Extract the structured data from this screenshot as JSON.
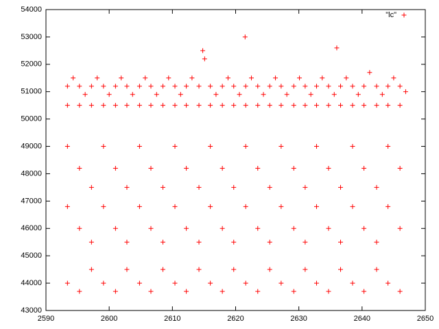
{
  "chart_data": {
    "type": "scatter",
    "color": "#ff0000",
    "legend": "top-right",
    "series": [
      {
        "name": "\"lc\"",
        "color": "#ff0000",
        "x": [
          2593.4,
          2593.4,
          2593.4,
          2593.4,
          2593.4,
          2594.3,
          2595.3,
          2595.3,
          2595.3,
          2595.3,
          2595.3,
          2596.2,
          2597.2,
          2597.2,
          2597.2,
          2597.2,
          2597.2,
          2598.1,
          2599.1,
          2599.1,
          2599.1,
          2599.1,
          2599.1,
          2600.0,
          2601.0,
          2601.0,
          2601.0,
          2601.0,
          2601.0,
          2601.9,
          2602.8,
          2602.8,
          2602.8,
          2602.8,
          2602.8,
          2603.7,
          2604.8,
          2604.8,
          2604.8,
          2604.8,
          2604.8,
          2605.7,
          2606.6,
          2606.6,
          2606.6,
          2606.6,
          2606.6,
          2607.5,
          2608.5,
          2608.5,
          2608.5,
          2608.5,
          2608.5,
          2609.4,
          2610.4,
          2610.4,
          2610.4,
          2610.4,
          2610.4,
          2611.3,
          2612.2,
          2612.2,
          2612.2,
          2612.2,
          2612.2,
          2613.1,
          2614.2,
          2614.2,
          2614.2,
          2614.2,
          2614.2,
          2615.1,
          2616.0,
          2616.0,
          2616.0,
          2616.0,
          2616.0,
          2616.9,
          2617.9,
          2617.9,
          2617.9,
          2617.9,
          2617.9,
          2618.8,
          2619.7,
          2619.7,
          2619.7,
          2619.7,
          2619.7,
          2620.6,
          2621.6,
          2621.6,
          2621.6,
          2621.6,
          2621.6,
          2622.5,
          2623.5,
          2623.5,
          2623.5,
          2623.5,
          2623.5,
          2624.4,
          2625.4,
          2625.4,
          2625.4,
          2625.4,
          2625.4,
          2626.3,
          2627.2,
          2627.2,
          2627.2,
          2627.2,
          2627.2,
          2628.1,
          2629.2,
          2629.2,
          2629.2,
          2629.2,
          2629.2,
          2630.1,
          2631.0,
          2631.0,
          2631.0,
          2631.0,
          2631.0,
          2631.9,
          2632.8,
          2632.8,
          2632.8,
          2632.8,
          2632.8,
          2633.7,
          2634.7,
          2634.7,
          2634.7,
          2634.7,
          2634.7,
          2635.6,
          2636.6,
          2636.6,
          2636.6,
          2636.6,
          2636.6,
          2637.5,
          2638.5,
          2638.5,
          2638.5,
          2638.5,
          2638.5,
          2639.4,
          2640.3,
          2640.3,
          2640.3,
          2640.3,
          2640.3,
          2641.2,
          2642.3,
          2642.3,
          2642.3,
          2642.3,
          2642.3,
          2643.2,
          2644.1,
          2644.1,
          2644.1,
          2644.1,
          2644.1,
          2645.0,
          2646.0,
          2646.0,
          2646.0,
          2646.0,
          2646.0,
          2646.9,
          2621.5,
          2614.8,
          2636.0
        ],
        "values": [
          51200,
          50500,
          49000,
          46800,
          44000,
          51500,
          51200,
          50500,
          48200,
          46000,
          43700,
          50900,
          51200,
          50500,
          47500,
          45500,
          44500,
          51500,
          51200,
          50500,
          49000,
          46800,
          44000,
          50900,
          51200,
          50500,
          48200,
          46000,
          43700,
          51500,
          51200,
          50500,
          47500,
          45500,
          44500,
          50900,
          51200,
          50500,
          49000,
          46800,
          44000,
          51500,
          51200,
          50500,
          48200,
          46000,
          43700,
          50900,
          51200,
          50500,
          47500,
          45500,
          44500,
          51500,
          51200,
          50500,
          49000,
          46800,
          44000,
          50900,
          51200,
          50500,
          48200,
          46000,
          43700,
          51500,
          51200,
          50500,
          47500,
          45500,
          44500,
          52200,
          51200,
          50500,
          49000,
          46800,
          44000,
          50900,
          51200,
          50500,
          48200,
          46000,
          43700,
          51500,
          51200,
          50500,
          47500,
          45500,
          44500,
          50900,
          51200,
          50500,
          49000,
          46800,
          44000,
          51500,
          51200,
          50500,
          48200,
          46000,
          43700,
          50900,
          51200,
          50500,
          47500,
          45500,
          44500,
          51500,
          51200,
          50500,
          49000,
          46800,
          44000,
          50900,
          51200,
          50500,
          48200,
          46000,
          43700,
          51500,
          51200,
          50500,
          47500,
          45500,
          44500,
          50900,
          51200,
          50500,
          49000,
          46800,
          44000,
          51500,
          51200,
          50500,
          48200,
          46000,
          43700,
          50900,
          51200,
          50500,
          47500,
          45500,
          44500,
          51500,
          51200,
          50500,
          49000,
          46800,
          44000,
          50900,
          51200,
          50500,
          48200,
          46000,
          43700,
          51700,
          51200,
          50500,
          47500,
          45500,
          44500,
          50900,
          51200,
          50500,
          49000,
          46800,
          44000,
          51500,
          51200,
          50500,
          48200,
          46000,
          43700,
          51000,
          53000,
          52500,
          52600
        ]
      }
    ],
    "xlim": [
      2590,
      2650
    ],
    "xticks": [
      2590,
      2600,
      2610,
      2620,
      2630,
      2640,
      2650
    ],
    "ylim": [
      43000,
      54000
    ],
    "yticks": [
      43000,
      44000,
      45000,
      46000,
      47000,
      48000,
      49000,
      50000,
      51000,
      52000,
      53000,
      54000
    ],
    "grid": false
  }
}
